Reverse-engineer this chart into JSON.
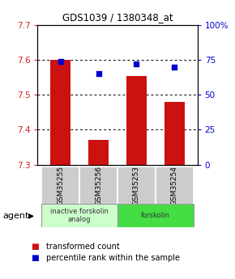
{
  "title": "GDS1039 / 1380348_at",
  "samples": [
    "GSM35255",
    "GSM35256",
    "GSM35253",
    "GSM35254"
  ],
  "bar_values": [
    7.6,
    7.37,
    7.555,
    7.48
  ],
  "dot_values_pct": [
    74,
    65,
    72,
    70
  ],
  "ylim_left": [
    7.3,
    7.7
  ],
  "ylim_right": [
    0,
    100
  ],
  "yticks_left": [
    7.3,
    7.4,
    7.5,
    7.6,
    7.7
  ],
  "yticks_right": [
    0,
    25,
    50,
    75,
    100
  ],
  "bar_color": "#cc1111",
  "dot_color": "#0000cc",
  "bar_bottom": 7.3,
  "agent_groups": [
    {
      "label": "inactive forskolin\nanalog",
      "span": [
        0,
        2
      ],
      "color": "#ccffcc"
    },
    {
      "label": "forskolin",
      "span": [
        2,
        4
      ],
      "color": "#44dd44"
    }
  ],
  "legend_bar_label": "transformed count",
  "legend_dot_label": "percentile rank within the sample",
  "agent_label": "agent",
  "background_color": "#ffffff",
  "plot_bg": "#ffffff",
  "tick_label_color_left": "#cc2222",
  "tick_label_color_right": "#0000cc",
  "title_color": "#000000",
  "sample_area_color": "#cccccc",
  "inactive_group_color": "#ccffcc",
  "active_group_color": "#44dd44"
}
